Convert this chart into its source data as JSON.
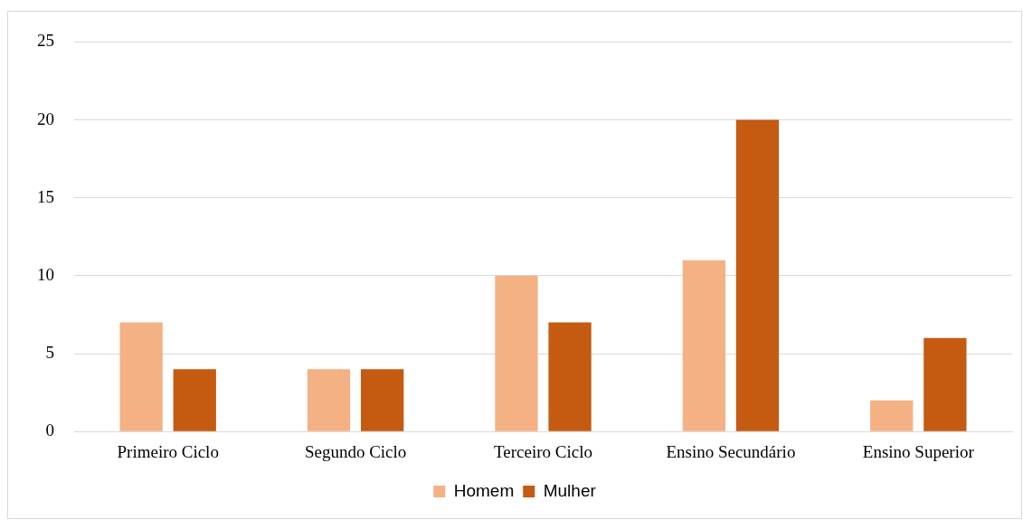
{
  "chart_data": {
    "type": "bar",
    "categories": [
      "Primeiro Ciclo",
      "Segundo Ciclo",
      "Terceiro Ciclo",
      "Ensino Secundário",
      "Ensino Superior"
    ],
    "series": [
      {
        "name": "Homem",
        "color": "#f4b183",
        "values": [
          7,
          4,
          10,
          11,
          2
        ]
      },
      {
        "name": "Mulher",
        "color": "#c55a11",
        "values": [
          4,
          4,
          7,
          20,
          6
        ]
      }
    ],
    "ylim": [
      0,
      25
    ],
    "yticks": [
      0,
      5,
      10,
      15,
      20,
      25
    ],
    "grid": "y",
    "legend": "bottom"
  }
}
